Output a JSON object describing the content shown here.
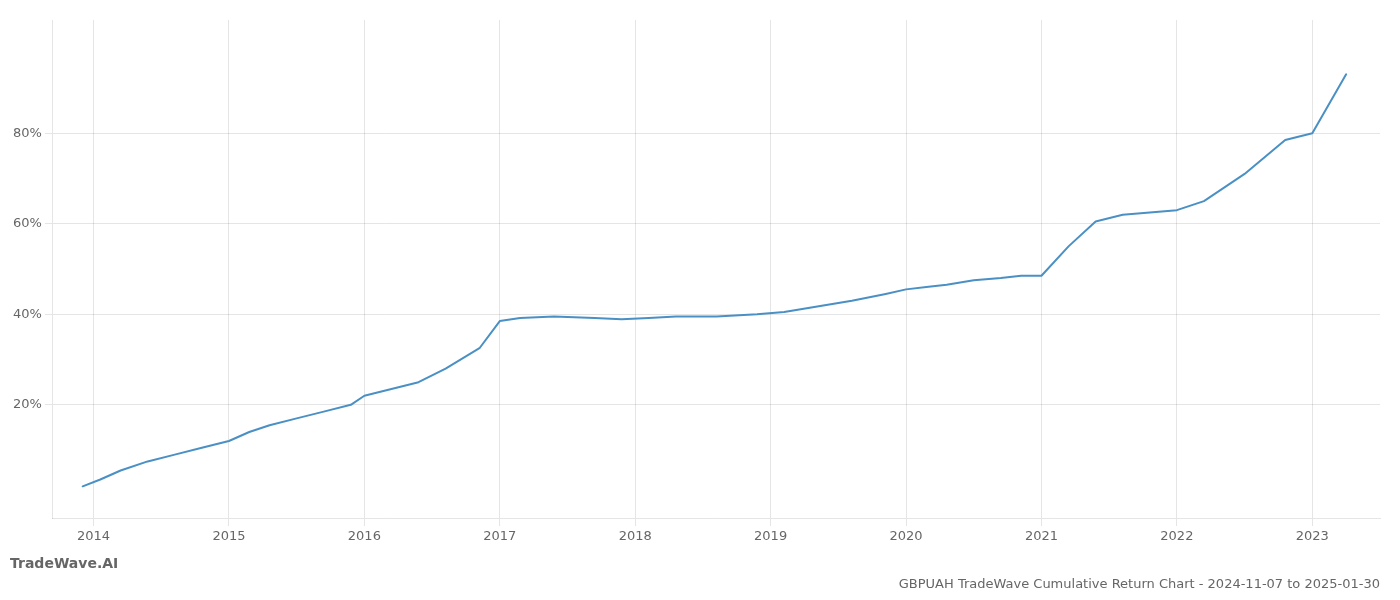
{
  "chart_data": {
    "type": "line",
    "title": "GBPUAH TradeWave Cumulative Return Chart - 2024-11-07 to 2025-01-30",
    "annotation": "TradeWave.AI",
    "x": [
      2013.92,
      2014.05,
      2014.2,
      2014.4,
      2014.6,
      2014.8,
      2015.0,
      2015.15,
      2015.3,
      2015.5,
      2015.7,
      2015.9,
      2016.0,
      2016.2,
      2016.4,
      2016.6,
      2016.85,
      2017.0,
      2017.15,
      2017.4,
      2017.7,
      2017.9,
      2018.1,
      2018.3,
      2018.6,
      2018.9,
      2019.1,
      2019.3,
      2019.6,
      2019.85,
      2020.0,
      2020.15,
      2020.3,
      2020.5,
      2020.7,
      2020.85,
      2021.0,
      2021.2,
      2021.4,
      2021.6,
      2021.8,
      2022.0,
      2022.2,
      2022.5,
      2022.8,
      2023.0,
      2023.25
    ],
    "values": [
      2.0,
      3.5,
      5.5,
      7.5,
      9.0,
      10.5,
      12.0,
      14.0,
      15.5,
      17.0,
      18.5,
      20.0,
      22.0,
      23.5,
      25.0,
      28.0,
      32.5,
      38.5,
      39.2,
      39.5,
      39.2,
      38.9,
      39.2,
      39.5,
      39.5,
      40.0,
      40.5,
      41.5,
      43.0,
      44.5,
      45.5,
      46.0,
      46.5,
      47.5,
      48.0,
      48.5,
      48.5,
      55.0,
      60.5,
      62.0,
      62.5,
      63.0,
      65.0,
      71.0,
      78.5,
      80.0,
      93.0
    ],
    "color": "#4a90c4",
    "xlim": [
      2013.7,
      2023.5
    ],
    "xticks": [
      2014,
      2015,
      2016,
      2017,
      2018,
      2019,
      2020,
      2021,
      2022,
      2023
    ],
    "ylim": [
      -5,
      105
    ],
    "yticks": [
      {
        "value": 20,
        "label": "20%"
      },
      {
        "value": 40,
        "label": "40%"
      },
      {
        "value": 60,
        "label": "60%"
      },
      {
        "value": 80,
        "label": "80%"
      }
    ],
    "grid": true
  }
}
